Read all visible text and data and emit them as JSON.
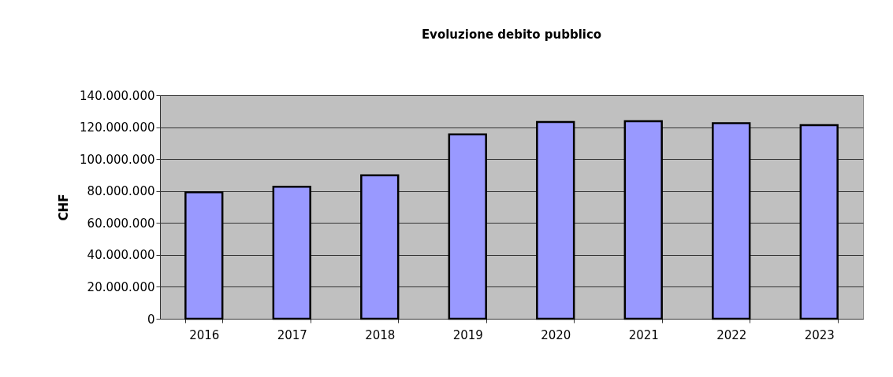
{
  "chart_data": {
    "type": "bar",
    "title": "Evoluzione debito pubblico",
    "ylabel": "CHF",
    "categories": [
      "2016",
      "2017",
      "2018",
      "2019",
      "2020",
      "2021",
      "2022",
      "2023"
    ],
    "values": [
      79200000,
      82700000,
      89900000,
      115500000,
      123300000,
      123700000,
      122500000,
      121300000
    ],
    "color": "#9999ff",
    "ylim": [
      0,
      140000000
    ],
    "yticks": [
      0,
      {
        "value": 20000000,
        "label": "20.000.000"
      },
      {
        "value": 40000000,
        "label": "40.000.000"
      },
      {
        "value": 60000000,
        "label": "60.000.000"
      },
      {
        "value": 80000000,
        "label": "80.000.000"
      },
      {
        "value": 100000000,
        "label": "100.000.000"
      },
      {
        "value": 120000000,
        "label": "120.000.000"
      },
      {
        "value": 140000000,
        "label": "140.000.000"
      }
    ],
    "grid": "y"
  }
}
